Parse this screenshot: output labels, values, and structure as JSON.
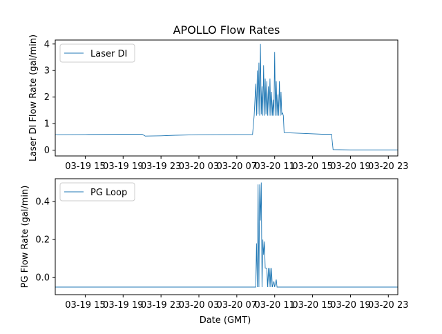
{
  "chart_data": [
    {
      "type": "line",
      "title": "APOLLO Flow Rates",
      "ylabel": "Laser DI Flow Rate (gal/min)",
      "xlabel": "",
      "xlim": [
        "03-19 11:50",
        "03-21 00:00"
      ],
      "ylim": [
        -0.22,
        4.15
      ],
      "xticks": [
        {
          "t": "03-19 15",
          "label": "03-19 15"
        },
        {
          "t": "03-19 19",
          "label": "03-19 19"
        },
        {
          "t": "03-19 23",
          "label": "03-19 23"
        },
        {
          "t": "03-20 03",
          "label": "03-20 03"
        },
        {
          "t": "03-20 07",
          "label": "03-20 07"
        },
        {
          "t": "03-20 11",
          "label": "03-20 11"
        },
        {
          "t": "03-20 15",
          "label": "03-20 15"
        },
        {
          "t": "03-20 19",
          "label": "03-20 19"
        },
        {
          "t": "03-20 23",
          "label": "03-20 23"
        }
      ],
      "yticks": [
        0,
        1,
        2,
        3,
        4
      ],
      "ytick_labels": [
        "0",
        "1",
        "2",
        "3",
        "4"
      ],
      "legend": {
        "placement": "upper-left",
        "entries": [
          "Laser DI"
        ]
      },
      "series": [
        {
          "name": "Laser DI",
          "color": "#1f77b4",
          "points": [
            [
              "03-19 11:50",
              0.58
            ],
            [
              "03-19 15:00",
              0.59
            ],
            [
              "03-19 19:00",
              0.6
            ],
            [
              "03-19 21:00",
              0.6
            ],
            [
              "03-19 21:20",
              0.53
            ],
            [
              "03-19 23:00",
              0.54
            ],
            [
              "03-20 00:30",
              0.56
            ],
            [
              "03-20 03:00",
              0.58
            ],
            [
              "03-20 07:00",
              0.59
            ],
            [
              "03-20 08:40",
              0.59
            ],
            [
              "03-20 08:50",
              1.3
            ],
            [
              "03-20 09:00",
              2.5
            ],
            [
              "03-20 09:05",
              1.3
            ],
            [
              "03-20 09:10",
              3.0
            ],
            [
              "03-20 09:15",
              1.35
            ],
            [
              "03-20 09:20",
              3.3
            ],
            [
              "03-20 09:25",
              1.3
            ],
            [
              "03-20 09:30",
              4.0
            ],
            [
              "03-20 09:35",
              1.35
            ],
            [
              "03-20 09:40",
              2.4
            ],
            [
              "03-20 09:45",
              1.3
            ],
            [
              "03-20 09:50",
              3.2
            ],
            [
              "03-20 09:55",
              1.3
            ],
            [
              "03-20 10:00",
              2.7
            ],
            [
              "03-20 10:05",
              1.35
            ],
            [
              "03-20 10:10",
              2.6
            ],
            [
              "03-20 10:15",
              1.3
            ],
            [
              "03-20 10:20",
              2.4
            ],
            [
              "03-20 10:25",
              1.3
            ],
            [
              "03-20 10:30",
              2.7
            ],
            [
              "03-20 10:35",
              1.3
            ],
            [
              "03-20 10:40",
              2.2
            ],
            [
              "03-20 10:45",
              1.3
            ],
            [
              "03-20 10:50",
              1.9
            ],
            [
              "03-20 10:55",
              1.3
            ],
            [
              "03-20 11:00",
              3.7
            ],
            [
              "03-20 11:05",
              1.3
            ],
            [
              "03-20 11:10",
              2.6
            ],
            [
              "03-20 11:15",
              1.3
            ],
            [
              "03-20 11:20",
              2.1
            ],
            [
              "03-20 11:25",
              1.3
            ],
            [
              "03-20 11:30",
              2.6
            ],
            [
              "03-20 11:35",
              1.3
            ],
            [
              "03-20 11:40",
              2.2
            ],
            [
              "03-20 11:45",
              1.35
            ],
            [
              "03-20 11:50",
              1.4
            ],
            [
              "03-20 11:55",
              1.3
            ],
            [
              "03-20 12:00",
              0.66
            ],
            [
              "03-20 14:00",
              0.63
            ],
            [
              "03-20 16:00",
              0.6
            ],
            [
              "03-20 17:00",
              0.6
            ],
            [
              "03-20 17:10",
              0.02
            ],
            [
              "03-20 19:00",
              0.01
            ],
            [
              "03-20 23:00",
              0.01
            ],
            [
              "03-21 00:00",
              0.01
            ]
          ]
        }
      ]
    },
    {
      "type": "line",
      "title": "",
      "ylabel": "PG Flow Rate (gal/min)",
      "xlabel": "Date (GMT)",
      "xlim": [
        "03-19 11:50",
        "03-21 00:00"
      ],
      "ylim": [
        -0.09,
        0.52
      ],
      "xticks": [
        {
          "t": "03-19 15",
          "label": "03-19 15"
        },
        {
          "t": "03-19 19",
          "label": "03-19 19"
        },
        {
          "t": "03-19 23",
          "label": "03-19 23"
        },
        {
          "t": "03-20 03",
          "label": "03-20 03"
        },
        {
          "t": "03-20 07",
          "label": "03-20 07"
        },
        {
          "t": "03-20 11",
          "label": "03-20 11"
        },
        {
          "t": "03-20 15",
          "label": "03-20 15"
        },
        {
          "t": "03-20 19",
          "label": "03-20 19"
        },
        {
          "t": "03-20 23",
          "label": "03-20 23"
        }
      ],
      "yticks": [
        0.0,
        0.2,
        0.4
      ],
      "ytick_labels": [
        "0.0",
        "0.2",
        "0.4"
      ],
      "legend": {
        "placement": "upper-left",
        "entries": [
          "PG Loop"
        ]
      },
      "series": [
        {
          "name": "PG Loop",
          "color": "#1f77b4",
          "points": [
            [
              "03-19 11:50",
              -0.05
            ],
            [
              "03-19 15:00",
              -0.05
            ],
            [
              "03-19 19:00",
              -0.05
            ],
            [
              "03-19 23:00",
              -0.05
            ],
            [
              "03-20 03:00",
              -0.05
            ],
            [
              "03-20 07:00",
              -0.05
            ],
            [
              "03-20 09:00",
              -0.05
            ],
            [
              "03-20 09:05",
              0.18
            ],
            [
              "03-20 09:10",
              -0.05
            ],
            [
              "03-20 09:15",
              0.49
            ],
            [
              "03-20 09:20",
              -0.05
            ],
            [
              "03-20 09:25",
              0.49
            ],
            [
              "03-20 09:30",
              0.3
            ],
            [
              "03-20 09:35",
              0.5
            ],
            [
              "03-20 09:40",
              -0.05
            ],
            [
              "03-20 09:45",
              0.2
            ],
            [
              "03-20 09:50",
              0.12
            ],
            [
              "03-20 09:55",
              0.19
            ],
            [
              "03-20 10:00",
              0.05
            ],
            [
              "03-20 10:05",
              0.05
            ],
            [
              "03-20 10:10",
              0.05
            ],
            [
              "03-20 10:15",
              -0.05
            ],
            [
              "03-20 10:20",
              0.05
            ],
            [
              "03-20 10:25",
              -0.05
            ],
            [
              "03-20 10:30",
              0.05
            ],
            [
              "03-20 10:35",
              -0.05
            ],
            [
              "03-20 10:40",
              0.05
            ],
            [
              "03-20 10:45",
              -0.05
            ],
            [
              "03-20 10:55",
              -0.02
            ],
            [
              "03-20 11:00",
              -0.05
            ],
            [
              "03-20 11:10",
              -0.01
            ],
            [
              "03-20 11:15",
              -0.05
            ],
            [
              "03-20 15:00",
              -0.05
            ],
            [
              "03-20 19:00",
              -0.05
            ],
            [
              "03-20 23:00",
              -0.05
            ],
            [
              "03-21 00:00",
              -0.05
            ]
          ]
        }
      ]
    }
  ]
}
